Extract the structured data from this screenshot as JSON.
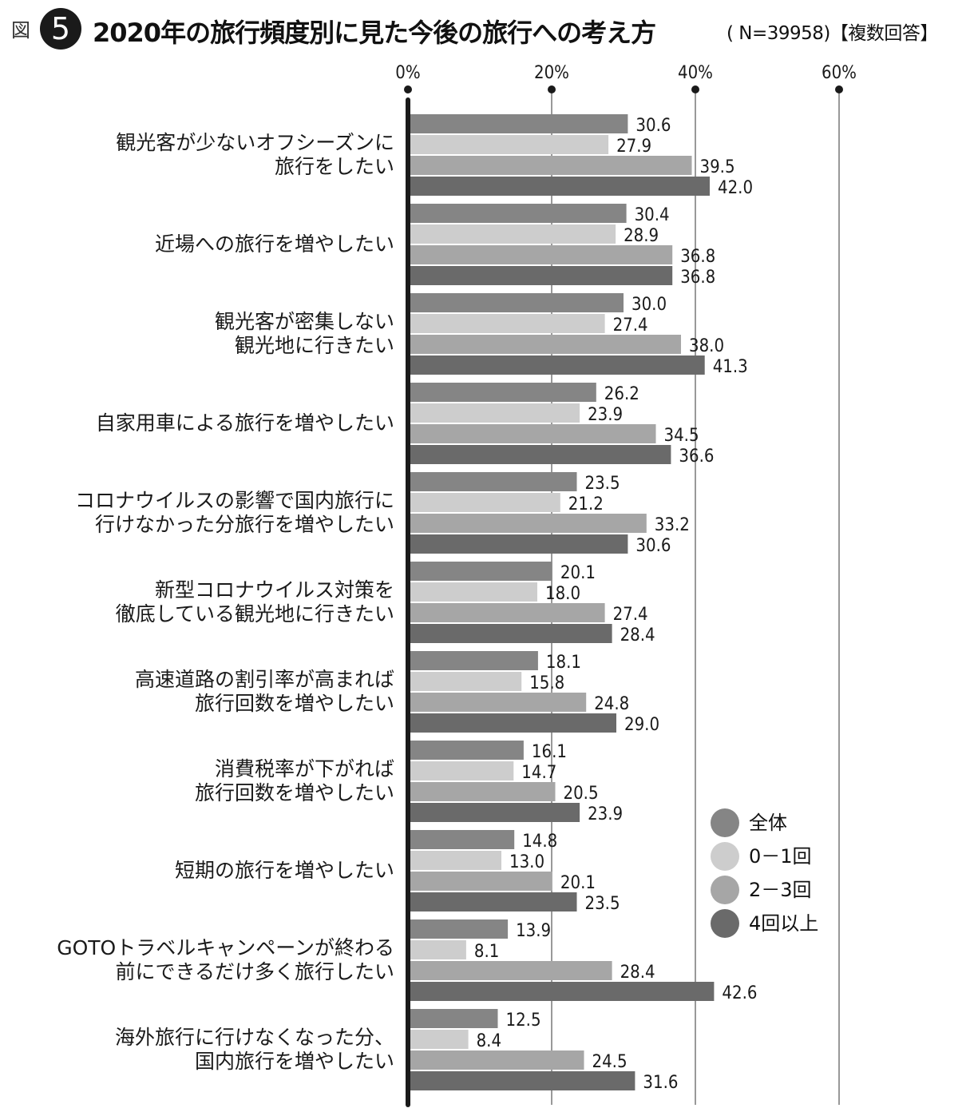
{
  "header": {
    "prefix": "図",
    "number": "5",
    "title": "2020年の旅行頻度別に見た今後の旅行への考え方",
    "subtitle": "( N=39958)【複数回答】"
  },
  "colors": {
    "series": [
      "#858585",
      "#cdcdcd",
      "#a6a6a6",
      "#6a6a6a"
    ],
    "axis": "#1a1a1a",
    "grid": "#333333"
  },
  "chart_data": {
    "type": "bar",
    "orientation": "horizontal",
    "title": "2020年の旅行頻度別に見た今後の旅行への考え方",
    "xlim": [
      0,
      60
    ],
    "xticks": [
      "0%",
      "20%",
      "40%",
      "60%"
    ],
    "xtick_values": [
      0,
      20,
      40,
      60
    ],
    "grid": true,
    "legend_position": "bottom-right",
    "categories": [
      [
        "観光客が少ないオフシーズンに",
        "旅行をしたい"
      ],
      [
        "近場への旅行を増やしたい"
      ],
      [
        "観光客が密集しない",
        "観光地に行きたい"
      ],
      [
        "自家用車による旅行を増やしたい"
      ],
      [
        "コロナウイルスの影響で国内旅行に",
        "行けなかった分旅行を増やしたい"
      ],
      [
        "新型コロナウイルス対策を",
        "徹底している観光地に行きたい"
      ],
      [
        "高速道路の割引率が高まれば",
        "旅行回数を増やしたい"
      ],
      [
        "消費税率が下がれば",
        "旅行回数を増やしたい"
      ],
      [
        "短期の旅行を増やしたい"
      ],
      [
        "GOTOトラベルキャンペーンが終わる",
        "前にできるだけ多く旅行したい"
      ],
      [
        "海外旅行に行けなくなった分、",
        "国内旅行を増やしたい"
      ]
    ],
    "series": [
      {
        "name": "全体",
        "values": [
          30.6,
          30.4,
          30.0,
          26.2,
          23.5,
          20.1,
          18.1,
          16.1,
          14.8,
          13.9,
          12.5
        ],
        "labels": [
          "30.6",
          "30.4",
          "30.0",
          "26.2",
          "23.5",
          "20.1",
          "18.1",
          "16.1",
          "14.8",
          "13.9",
          "12.5"
        ]
      },
      {
        "name": "0－1回",
        "values": [
          27.9,
          28.9,
          27.4,
          23.9,
          21.2,
          18.0,
          15.8,
          14.7,
          13.0,
          8.1,
          8.4
        ],
        "labels": [
          "27.9",
          "28.9",
          "27.4",
          "23.9",
          "21.2",
          "18.0",
          "15.8",
          "14.7",
          "13.0",
          "8.1",
          "8.4"
        ]
      },
      {
        "name": "2－3回",
        "values": [
          39.5,
          36.8,
          38.0,
          34.5,
          33.2,
          27.4,
          24.8,
          20.5,
          20.1,
          28.4,
          24.5
        ],
        "labels": [
          "39.5",
          "36.8",
          "38.0",
          "34.5",
          "33.2",
          "27.4",
          "24.8",
          "20.5",
          "20.1",
          "28.4",
          "24.5"
        ]
      },
      {
        "name": "4回以上",
        "values": [
          42.0,
          36.8,
          41.3,
          36.6,
          30.6,
          28.4,
          29.0,
          23.9,
          23.5,
          42.6,
          31.6
        ],
        "labels": [
          "42.0",
          "36.8",
          "41.3",
          "36.6",
          "30.6",
          "28.4",
          "29.0",
          "23.9",
          "23.5",
          "42.6",
          "31.6"
        ]
      }
    ]
  }
}
